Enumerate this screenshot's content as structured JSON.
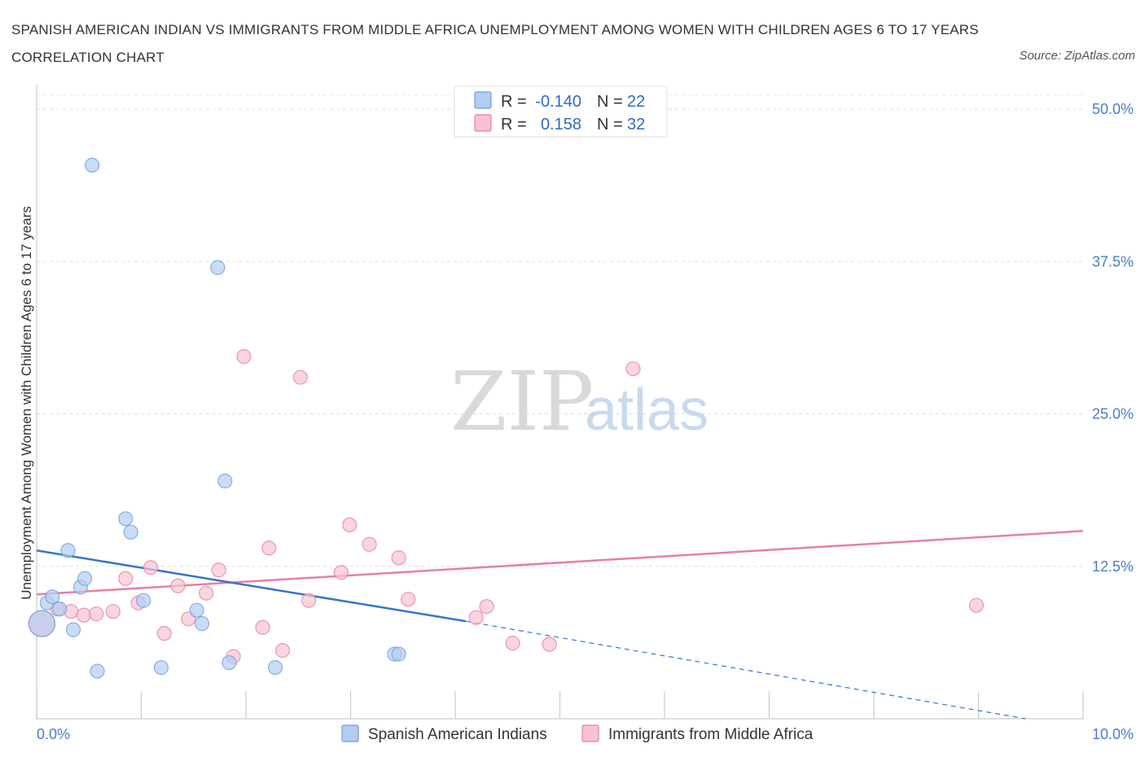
{
  "title": "SPANISH AMERICAN INDIAN VS IMMIGRANTS FROM MIDDLE AFRICA UNEMPLOYMENT AMONG WOMEN WITH CHILDREN AGES 6 TO 17 YEARS CORRELATION CHART",
  "source": "Source: ZipAtlas.com",
  "watermark": {
    "zip": "ZIP",
    "atlas": "atlas"
  },
  "legend_box": {
    "rows": [
      {
        "r_label": "R =",
        "r_value": "-0.140",
        "n_label": "N =",
        "n_value": "22",
        "color": "#b3cdf0"
      },
      {
        "r_label": "R =",
        "r_value": "0.158",
        "n_label": "N =",
        "n_value": "32",
        "color": "#f7c3d2"
      }
    ]
  },
  "chart_data": {
    "type": "scatter",
    "title": "SPANISH AMERICAN INDIAN VS IMMIGRANTS FROM MIDDLE AFRICA UNEMPLOYMENT AMONG WOMEN WITH CHILDREN AGES 6 TO 17 YEARS CORRELATION CHART",
    "xlabel": "",
    "ylabel": "Unemployment Among Women with Children Ages 6 to 17 years",
    "xlim": [
      0,
      10
    ],
    "ylim": [
      0,
      50
    ],
    "x_ticks": [
      "0.0%",
      "10.0%"
    ],
    "y_ticks": [
      {
        "value": 50,
        "label": "50.0%"
      },
      {
        "value": 37.5,
        "label": "37.5%"
      },
      {
        "value": 25,
        "label": "25.0%"
      },
      {
        "value": 12.5,
        "label": "12.5%"
      }
    ],
    "grid": true,
    "legend_placement": "bottom",
    "series": [
      {
        "name": "Spanish American Indians",
        "color": "#6d9de0",
        "fill": "#b3cdf0",
        "r": -0.14,
        "n": 22,
        "points": [
          {
            "x": 0.05,
            "y": 7.8,
            "size": "large"
          },
          {
            "x": 0.1,
            "y": 9.5
          },
          {
            "x": 0.15,
            "y": 10.0
          },
          {
            "x": 0.22,
            "y": 9.0
          },
          {
            "x": 0.3,
            "y": 13.8
          },
          {
            "x": 0.35,
            "y": 7.3
          },
          {
            "x": 0.42,
            "y": 10.8
          },
          {
            "x": 0.46,
            "y": 11.5
          },
          {
            "x": 0.53,
            "y": 45.4
          },
          {
            "x": 0.58,
            "y": 3.9
          },
          {
            "x": 0.85,
            "y": 16.4
          },
          {
            "x": 0.9,
            "y": 15.3
          },
          {
            "x": 1.02,
            "y": 9.7
          },
          {
            "x": 1.19,
            "y": 4.2
          },
          {
            "x": 1.53,
            "y": 8.9
          },
          {
            "x": 1.58,
            "y": 7.8
          },
          {
            "x": 1.73,
            "y": 37.0
          },
          {
            "x": 1.8,
            "y": 19.5
          },
          {
            "x": 1.84,
            "y": 4.6
          },
          {
            "x": 2.28,
            "y": 4.2
          },
          {
            "x": 3.42,
            "y": 5.3
          },
          {
            "x": 3.46,
            "y": 5.3
          }
        ],
        "trend": {
          "x0": 0,
          "y0": 13.8,
          "x1": 4.1,
          "y1": 8.0,
          "dash_to_x": 9.45,
          "dash_to_y": 0
        }
      },
      {
        "name": "Immigrants from Middle Africa",
        "color": "#e67fa2",
        "fill": "#f7c3d2",
        "r": 0.158,
        "n": 32,
        "points": [
          {
            "x": 0.05,
            "y": 7.8,
            "size": "large"
          },
          {
            "x": 0.2,
            "y": 9.0
          },
          {
            "x": 0.33,
            "y": 8.8
          },
          {
            "x": 0.45,
            "y": 8.5
          },
          {
            "x": 0.57,
            "y": 8.6
          },
          {
            "x": 0.73,
            "y": 8.8
          },
          {
            "x": 0.85,
            "y": 11.5
          },
          {
            "x": 0.97,
            "y": 9.5
          },
          {
            "x": 1.09,
            "y": 12.4
          },
          {
            "x": 1.22,
            "y": 7.0
          },
          {
            "x": 1.35,
            "y": 10.9
          },
          {
            "x": 1.45,
            "y": 8.2
          },
          {
            "x": 1.62,
            "y": 10.3
          },
          {
            "x": 1.74,
            "y": 12.2
          },
          {
            "x": 1.88,
            "y": 5.1
          },
          {
            "x": 1.98,
            "y": 29.7
          },
          {
            "x": 2.16,
            "y": 7.5
          },
          {
            "x": 2.22,
            "y": 14.0
          },
          {
            "x": 2.35,
            "y": 5.6
          },
          {
            "x": 2.52,
            "y": 28.0
          },
          {
            "x": 2.6,
            "y": 9.7
          },
          {
            "x": 2.91,
            "y": 12.0
          },
          {
            "x": 2.99,
            "y": 15.9
          },
          {
            "x": 3.18,
            "y": 14.3
          },
          {
            "x": 3.46,
            "y": 13.2
          },
          {
            "x": 3.55,
            "y": 9.8
          },
          {
            "x": 4.2,
            "y": 8.3
          },
          {
            "x": 4.3,
            "y": 9.2
          },
          {
            "x": 4.55,
            "y": 6.2
          },
          {
            "x": 4.9,
            "y": 6.1
          },
          {
            "x": 5.7,
            "y": 28.7
          },
          {
            "x": 8.98,
            "y": 9.3
          }
        ],
        "trend": {
          "x0": 0,
          "y0": 10.2,
          "x1": 10,
          "y1": 15.4
        }
      }
    ]
  }
}
